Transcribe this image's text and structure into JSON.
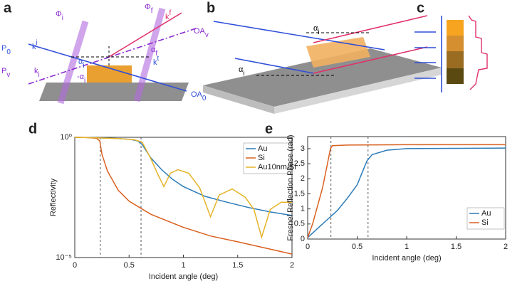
{
  "panels": [
    "a",
    "b",
    "c",
    "d",
    "e"
  ],
  "diagram_a": {
    "labels": [
      {
        "base": "P",
        "sub": "0"
      },
      {
        "base": "k",
        "sup": "i"
      },
      {
        "base": "Φ",
        "sub": "i"
      },
      {
        "base": "Φ",
        "sub": "f"
      },
      {
        "base": "k",
        "sup": "f"
      },
      {
        "base": "OA",
        "sub": "v"
      },
      {
        "base": "α",
        "sub": "i"
      },
      {
        "base": "α",
        "sub": "f"
      },
      {
        "base": "-α",
        "sub": "i"
      },
      {
        "base": "k",
        "sup": "t"
      },
      {
        "base": "P",
        "sub": "v"
      },
      {
        "base": "k",
        "sub": "i"
      },
      {
        "base": "OA",
        "sub": "0"
      }
    ]
  },
  "diagram_b": {
    "labels": [
      {
        "base": "α",
        "sub": "i"
      },
      {
        "base": "α",
        "sub": "i"
      }
    ]
  },
  "chart_data": [
    {
      "type": "line",
      "ylabel": "Reflectivity",
      "xlabel": "Incident angle (deg)",
      "log_y": true,
      "legend": "upper right",
      "xlim": [
        0,
        2
      ],
      "xticks": [
        0,
        0.5,
        1,
        1.5,
        2
      ],
      "ylim": [
        1e-05,
        1
      ],
      "yticks": [
        {
          "value": 1e-05,
          "label": "10⁻⁵"
        },
        {
          "value": 1,
          "label": "10⁰"
        }
      ],
      "vlines": [
        0.235,
        0.61
      ],
      "series": [
        {
          "name": "Au",
          "color": "#2b7bb9",
          "x": [
            0,
            0.1,
            0.2,
            0.3,
            0.4,
            0.5,
            0.58,
            0.62,
            0.7,
            0.8,
            0.9,
            1,
            1.2,
            1.4,
            1.6,
            1.8,
            2
          ],
          "values": [
            1,
            0.98,
            0.95,
            0.93,
            0.89,
            0.83,
            0.71,
            0.5,
            0.14,
            0.045,
            0.018,
            0.0089,
            0.0035,
            0.002,
            0.0012,
            0.00079,
            0.00056
          ]
        },
        {
          "name": "Si",
          "color": "#d9601f",
          "x": [
            0,
            0.1,
            0.2,
            0.23,
            0.25,
            0.3,
            0.4,
            0.5,
            0.7,
            1,
            1.25,
            1.5,
            1.75,
            2
          ],
          "values": [
            1,
            0.98,
            0.91,
            0.71,
            0.2,
            0.04,
            0.0063,
            0.0022,
            0.00063,
            0.00018,
            7.9e-05,
            4.5e-05,
            2.5e-05,
            1.4e-05
          ]
        },
        {
          "name": "Au10nm/Si",
          "color": "#e5b328",
          "x": [
            0,
            0.2,
            0.4,
            0.55,
            0.62,
            0.7,
            0.76,
            0.82,
            0.88,
            0.95,
            1.05,
            1.15,
            1.25,
            1.33,
            1.45,
            1.57,
            1.65,
            1.72,
            1.8,
            1.9,
            2
          ],
          "values": [
            1,
            0.95,
            0.89,
            0.79,
            0.63,
            0.13,
            0.032,
            0.0089,
            0.032,
            0.045,
            0.032,
            0.0079,
            0.0005,
            0.004,
            0.0071,
            0.0032,
            0.001,
            7e-05,
            0.001,
            0.002,
            0.002
          ]
        }
      ]
    },
    {
      "type": "line",
      "ylabel": "Fresnel Reflection Phase (rad)",
      "xlabel": "Incident angle (deg)",
      "log_y": false,
      "legend": "lower right",
      "xlim": [
        0,
        2
      ],
      "xticks": [
        0,
        0.5,
        1,
        1.5,
        2
      ],
      "ylim": [
        0,
        3.4
      ],
      "yticks": [
        0,
        0.5,
        1,
        1.5,
        2,
        2.5,
        3
      ],
      "vlines": [
        0.235,
        0.61
      ],
      "series": [
        {
          "name": "Au",
          "color": "#2b7bb9",
          "x": [
            0,
            0.1,
            0.2,
            0.3,
            0.4,
            0.5,
            0.55,
            0.6,
            0.65,
            0.8,
            1,
            1.5,
            2
          ],
          "values": [
            0.05,
            0.35,
            0.65,
            0.95,
            1.35,
            1.8,
            2.2,
            2.6,
            2.8,
            2.95,
            3,
            3.01,
            3.02
          ]
        },
        {
          "name": "Si",
          "color": "#d9601f",
          "x": [
            0,
            0.05,
            0.1,
            0.15,
            0.2,
            0.23,
            0.25,
            0.4,
            1,
            2
          ],
          "values": [
            0.05,
            0.5,
            1.1,
            1.7,
            2.5,
            3,
            3.1,
            3.12,
            3.13,
            3.13
          ]
        }
      ]
    }
  ]
}
